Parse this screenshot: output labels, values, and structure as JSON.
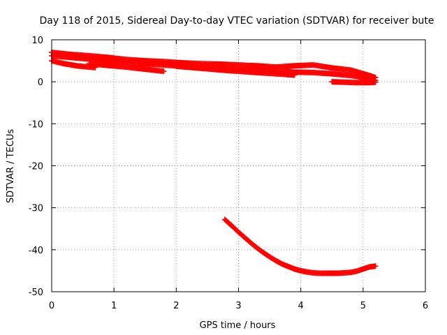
{
  "chart_data": {
    "type": "scatter",
    "title": "Day 118 of 2015, Sidereal Day-to-day VTEC variation (SDTVAR) for receiver bute",
    "xlabel": "GPS time / hours",
    "ylabel": "SDTVAR / TECUs",
    "xlim": [
      0,
      6
    ],
    "ylim": [
      -50,
      10
    ],
    "xticks": [
      "0",
      "1",
      "2",
      "3",
      "4",
      "5",
      "6"
    ],
    "yticks": [
      "10",
      "0",
      "-10",
      "-20",
      "-30",
      "-40",
      "-50"
    ],
    "grid": true,
    "marker_color": "#ff0000",
    "series": [
      {
        "x": [
          0.0,
          0.3,
          0.6,
          0.9,
          1.2,
          1.5,
          1.8,
          2.1,
          2.4,
          2.7,
          3.0,
          3.3,
          3.6,
          3.9,
          4.2,
          4.5,
          4.8,
          5.1,
          5.2
        ],
        "y": [
          7.0,
          6.5,
          6.2,
          5.8,
          5.3,
          5.0,
          4.8,
          4.5,
          4.3,
          4.2,
          4.0,
          3.8,
          3.5,
          3.8,
          4.0,
          3.3,
          2.8,
          1.5,
          1.0
        ]
      },
      {
        "x": [
          0.0,
          0.3,
          0.6,
          0.9,
          1.2,
          1.5,
          1.8,
          2.1,
          2.4,
          2.7,
          3.0,
          3.3,
          3.6,
          3.9,
          4.2,
          4.5,
          4.8,
          5.1,
          5.2
        ],
        "y": [
          6.2,
          5.8,
          5.4,
          5.0,
          4.6,
          4.3,
          4.0,
          3.7,
          3.3,
          3.0,
          2.9,
          2.8,
          2.5,
          2.3,
          2.2,
          1.9,
          1.5,
          0.8,
          0.3
        ]
      },
      {
        "x": [
          0.0,
          0.2,
          0.4,
          0.6,
          0.7
        ],
        "y": [
          5.0,
          4.3,
          3.8,
          3.5,
          3.4
        ]
      },
      {
        "x": [
          0.6,
          0.9,
          1.2,
          1.5,
          1.8
        ],
        "y": [
          4.3,
          3.9,
          3.5,
          3.0,
          2.5
        ]
      },
      {
        "x": [
          2.0,
          2.4,
          2.8,
          3.2,
          3.6,
          3.9
        ],
        "y": [
          3.7,
          3.2,
          2.7,
          2.3,
          1.9,
          1.6
        ]
      },
      {
        "x": [
          4.5,
          4.7,
          4.9,
          5.1,
          5.2
        ],
        "y": [
          0.0,
          -0.1,
          -0.2,
          -0.2,
          -0.1
        ]
      },
      {
        "x": [
          2.78,
          2.9,
          3.0,
          3.1,
          3.2,
          3.3,
          3.4,
          3.5,
          3.6,
          3.7,
          3.8,
          3.9,
          4.0,
          4.1,
          4.2,
          4.3,
          4.4,
          4.5,
          4.6,
          4.7,
          4.8,
          4.9,
          5.0,
          5.1,
          5.2
        ],
        "y": [
          -32.8,
          -34.4,
          -35.8,
          -37.1,
          -38.4,
          -39.6,
          -40.7,
          -41.7,
          -42.6,
          -43.4,
          -44.0,
          -44.6,
          -45.0,
          -45.3,
          -45.5,
          -45.6,
          -45.6,
          -45.6,
          -45.6,
          -45.5,
          -45.4,
          -45.1,
          -44.6,
          -44.1,
          -43.9
        ]
      }
    ]
  }
}
